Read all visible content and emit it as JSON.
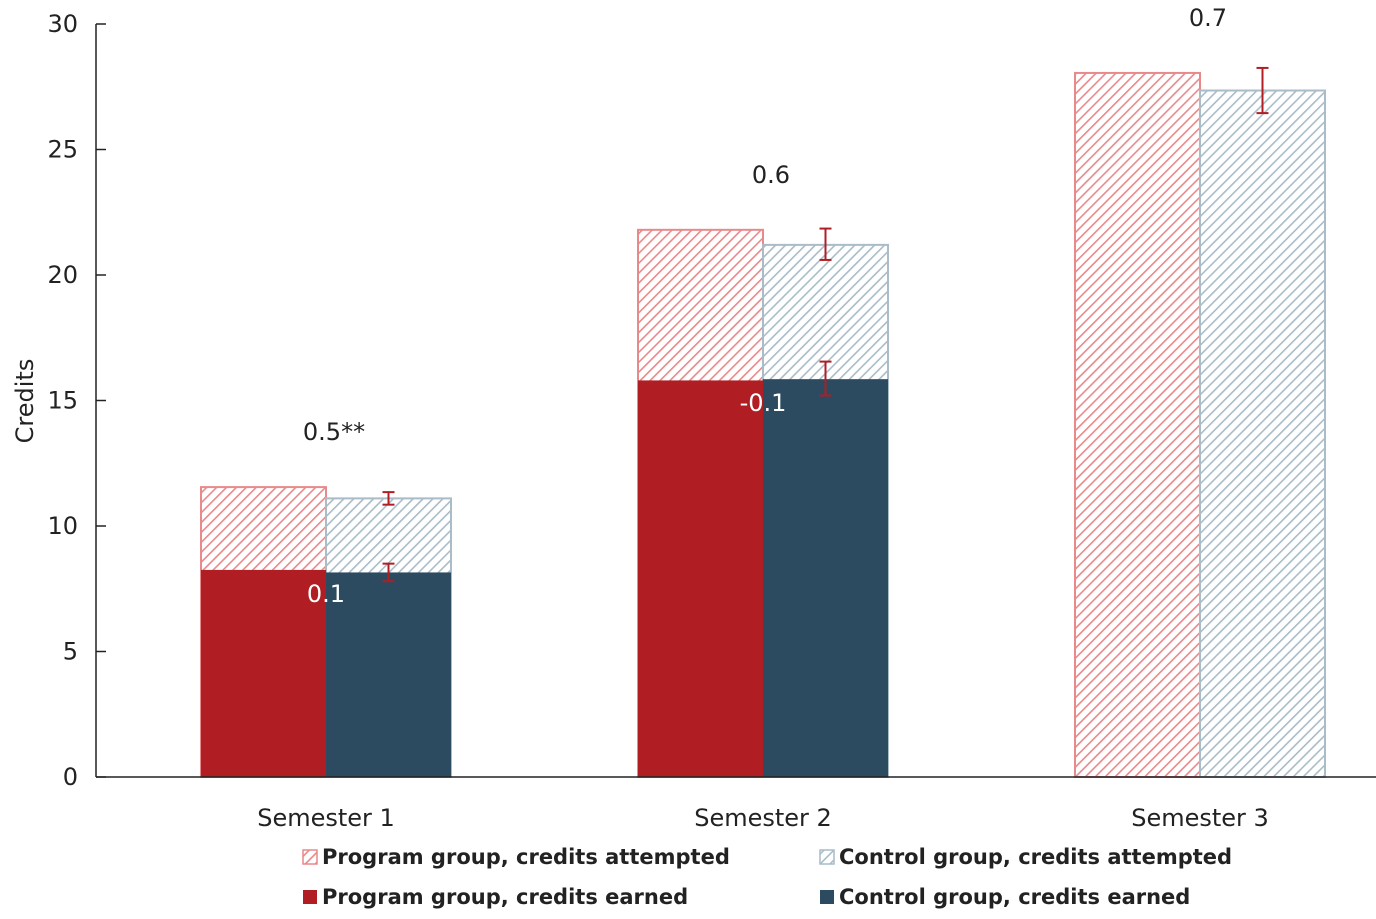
{
  "chart_data": {
    "type": "bar",
    "title": "",
    "xlabel": "",
    "ylabel": "Credits",
    "ylim": [
      0,
      30
    ],
    "yticks": [
      0,
      5,
      10,
      15,
      20,
      25,
      30
    ],
    "categories": [
      "Semester 1",
      "Semester 2",
      "Semester 3"
    ],
    "series": [
      {
        "name": "Program group, credits attempted",
        "values": [
          11.55,
          21.8,
          28.05
        ],
        "color": "#e8898b",
        "pattern": "hatched"
      },
      {
        "name": "Control group, credits attempted",
        "values": [
          11.1,
          21.2,
          27.35
        ],
        "color": "#a9bcc8",
        "pattern": "hatched"
      },
      {
        "name": "Program group, credits earned",
        "values": [
          8.25,
          15.8,
          null
        ],
        "color": "#b01e24",
        "pattern": "solid"
      },
      {
        "name": "Control group, credits earned",
        "values": [
          8.15,
          15.85,
          null
        ],
        "color": "#2c4b60",
        "pattern": "solid"
      }
    ],
    "error_bars": {
      "control_attempted": [
        [
          10.85,
          11.35
        ],
        [
          20.6,
          21.85
        ],
        [
          26.45,
          28.25
        ]
      ],
      "control_earned": [
        [
          7.8,
          8.5
        ],
        [
          15.2,
          16.55
        ],
        null
      ]
    },
    "annotations": {
      "attempted_difference": [
        "0.5**",
        "0.6",
        "0.7"
      ],
      "earned_difference": [
        "0.1",
        "-0.1",
        null
      ]
    },
    "error_bar_color": "#b01e24",
    "legend_placement": "bottom",
    "grid": false
  }
}
